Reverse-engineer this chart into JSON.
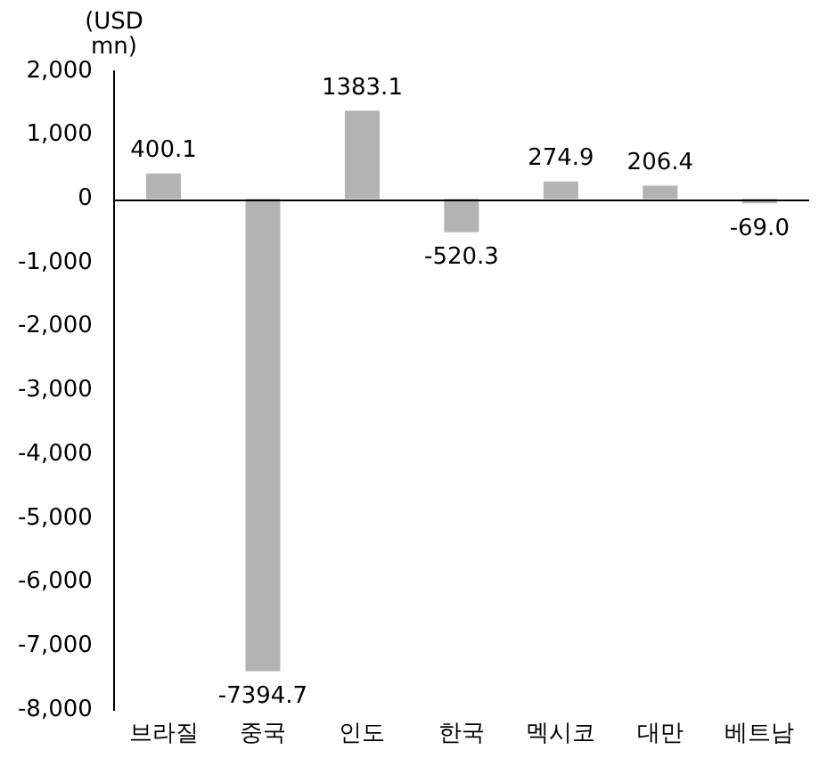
{
  "chart_data": {
    "type": "bar",
    "ylabel": "(USD mn)",
    "categories": [
      "브라질",
      "중국",
      "인도",
      "한국",
      "멕시코",
      "대만",
      "베트남"
    ],
    "values": [
      400.1,
      -7394.7,
      1383.1,
      -520.3,
      274.9,
      206.4,
      -69.0
    ],
    "color": "#b3b3b3",
    "ylim": [
      -8000,
      2000
    ],
    "yticks": [
      {
        "value": 2000,
        "label": "2,000"
      },
      {
        "value": 1000,
        "label": "1,000"
      },
      0,
      {
        "value": -1000,
        "label": "-1,000"
      },
      {
        "value": -2000,
        "label": "-2,000"
      },
      {
        "value": -3000,
        "label": "-3,000"
      },
      {
        "value": -4000,
        "label": "-4,000"
      },
      {
        "value": -5000,
        "label": "-5,000"
      },
      {
        "value": -6000,
        "label": "-6,000"
      },
      {
        "value": -7000,
        "label": "-7,000"
      },
      {
        "value": -8000,
        "label": "-8,000"
      }
    ],
    "value_labels": [
      "400.1",
      "-7394.7",
      "1383.1",
      "-520.3",
      "274.9",
      "206.4",
      "-69.0"
    ],
    "ref_lines": [
      {
        "axis": "y",
        "value": 0,
        "color": "#000000"
      }
    ],
    "grid": false,
    "legend": false
  }
}
